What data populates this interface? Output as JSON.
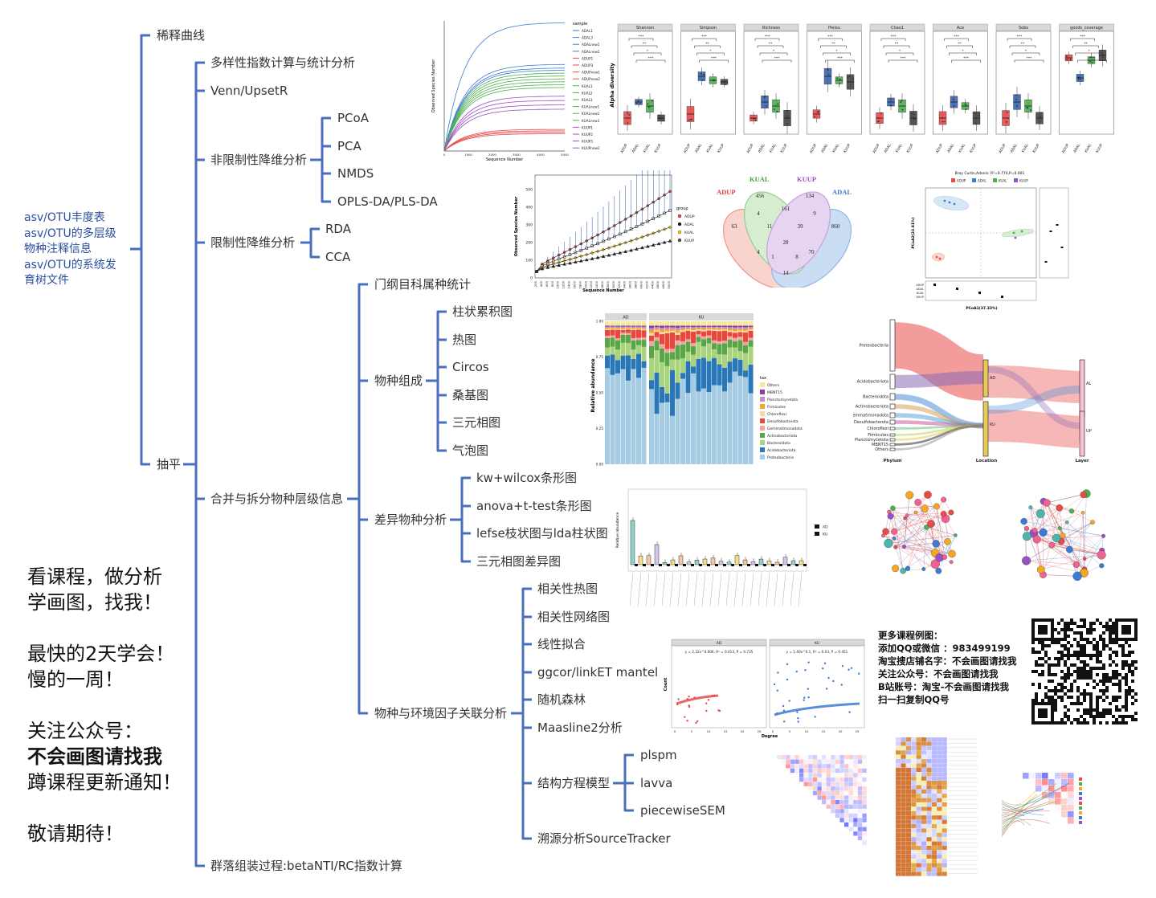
{
  "tree": {
    "root_items": [
      "asv/OTU丰度表",
      "asv/OTU的多层级",
      "物种注释信息",
      "asv/OTU的系统发",
      "育树文件"
    ],
    "level1": {
      "rarefaction": "稀释曲线",
      "flatten": "抽平"
    },
    "level2": {
      "diversity": "多样性指数计算与统计分析",
      "venn": "Venn/UpsetR",
      "unconstrained": "非限制性降维分析",
      "constrained": "限制性降维分析",
      "merge_split": "合并与拆分物种层级信息",
      "assembly": "群落组装过程:betaNTI/RC指数计算"
    },
    "unconstrained_children": [
      "PCoA",
      "PCA",
      "NMDS",
      "OPLS-DA/PLS-DA"
    ],
    "constrained_children": [
      "RDA",
      "CCA"
    ],
    "level3": {
      "stats": "门纲目科属种统计",
      "composition": "物种组成",
      "differential": "差异物种分析",
      "environment": "物种与环境因子关联分析"
    },
    "composition_children": [
      "柱状累积图",
      "热图",
      "Circos",
      "桑基图",
      "三元相图",
      "气泡图"
    ],
    "differential_children": [
      "kw+wilcox条形图",
      "anova+t-test条形图",
      "lefse枝状图与lda柱状图",
      "三元相图差异图"
    ],
    "environment_children": [
      "相关性热图",
      "相关性网络图",
      "线性拟合",
      "ggcor/linkET mantel",
      "随机森林",
      "Maasline2分析",
      "结构方程模型",
      "溯源分析SourceTracker"
    ],
    "sem_children": [
      "plspm",
      "lavva",
      "piecewiseSEM"
    ]
  },
  "promo": {
    "lines": [
      "看课程，做分析",
      "学画图，找我！",
      "",
      "最快的2天学会！",
      "慢的一周！",
      "",
      "关注公众号：",
      "不会画图请找我",
      "蹲课程更新通知！",
      "",
      "敬请期待！"
    ],
    "bold_line": "不会画图请找我"
  },
  "contact": [
    "更多课程例图：",
    "添加QQ或微信 ：983499199",
    "淘宝搜店铺名字：不会画图请找我",
    "关注公众号：不会画图请找我",
    "B站账号：淘宝-不会画图请找我",
    "扫一扫复制QQ号"
  ],
  "colors": {
    "tree_line": "#4a6fbf",
    "text": "#333333",
    "ad": "#e84a4a",
    "al": "#3a7bd5",
    "kual": "#4caf50",
    "kuup": "#9c4fc4"
  },
  "rarefaction": {
    "title": "sample",
    "ylabel": "Observed Species Number",
    "xlabel": "Sequence Number",
    "legend": [
      "ADAL1",
      "ADAL3",
      "ADALnew1",
      "ADALnew2",
      "ADUP1",
      "ADUP3",
      "ADUPnew1",
      "ADUPnew2",
      "KUAL1",
      "KUAL2",
      "KUAL3",
      "KUALnew1",
      "KUALnew2",
      "KUALnew3",
      "KUUP1",
      "KUUP2",
      "KUUP3",
      "KUUPnew2"
    ],
    "xticks": [
      "0",
      "1000",
      "2000",
      "3000",
      "4000",
      "5000"
    ]
  },
  "alpha": {
    "ylabel": "Alpha diversity",
    "panels": [
      "Shannon",
      "Simpson",
      "Richness",
      "Pielou",
      "Chao1",
      "Ace",
      "Sobs",
      "goods_coverage"
    ],
    "groups": [
      "ADUP",
      "ADAL",
      "KUAL",
      "KUUP"
    ],
    "sig_labels": [
      "***",
      "**",
      "*"
    ]
  },
  "rare_group": {
    "ylabel": "Observed Species Number",
    "xlabel": "Sequence Number",
    "legend_title": "group",
    "groups": [
      "ADUP",
      "ADAL",
      "KUAL",
      "KUUP"
    ],
    "yticks": [
      "0",
      "100",
      "200",
      "300",
      "400",
      "500"
    ]
  },
  "venn": {
    "labels": [
      "ADUP",
      "KUAL",
      "KUUP",
      "ADAL"
    ],
    "numbers": [
      "456",
      "134",
      "63",
      "4",
      "161",
      "9",
      "860",
      "11",
      "39",
      "28",
      "4",
      "1",
      "8",
      "70",
      "14"
    ]
  },
  "pcoa": {
    "title": "Bray Curtis,Adonis: R²=0.774,P=0.001",
    "xlabel": "PCoA1(37.33%)",
    "ylabel": "PCoA2(23.81%)",
    "groups": [
      "ADUP",
      "ADAL",
      "KUAL",
      "KUUP"
    ]
  },
  "stacked": {
    "facets": [
      "AD",
      "KU"
    ],
    "ylabel": "Relative abundance",
    "legend_title": "tax",
    "taxa": [
      "Others",
      "MBNT15",
      "Planctomycetota",
      "Firmicutes",
      "Chloroflexi",
      "Desulfobacterota",
      "Gemmatimonadota",
      "Actinobacteriota",
      "Bacteroidota",
      "Acidobacteriota",
      "Proteobacteria"
    ],
    "yticks": [
      "0.00",
      "0.25",
      "0.50",
      "0.75",
      "1.00"
    ]
  },
  "sankey": {
    "phyla": [
      "Proteobacteria",
      "Acidobacteriota",
      "Bacteroidota",
      "Actinobacteriota",
      "Gemmatimonadota",
      "Desulfobacterota",
      "Chloroflexi",
      "Firmicutes",
      "Planctomycetota",
      "MBNT15",
      "Others"
    ],
    "locations": [
      "AD",
      "KU"
    ],
    "layers": [
      "AL",
      "UP"
    ],
    "axes": [
      "Phylum",
      "Location",
      "Layer"
    ]
  },
  "boxdiff": {
    "ylabel": "Relative abundance",
    "legend": [
      "AD",
      "KU"
    ]
  },
  "fit": {
    "facets": [
      "AD",
      "KU"
    ],
    "eq_ad": "y = 2.32x^0.006, R² = 0.013, P = 0.735",
    "eq_ku": "y = 1.40x^0.1, R² = 0.03, P = 0.451",
    "xlabel": "Degree",
    "ylabel": "Count"
  }
}
